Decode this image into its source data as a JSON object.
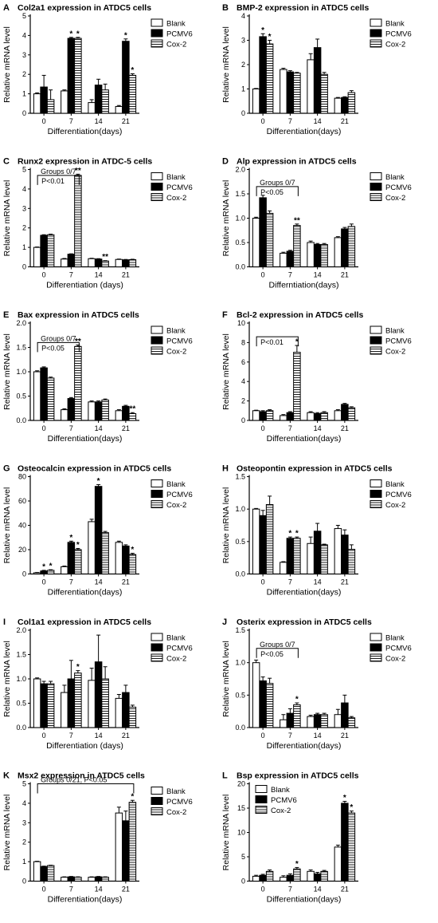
{
  "figure": {
    "legend_labels": [
      "Blank",
      "PCMV6",
      "Cox-2"
    ],
    "colors": {
      "blank": "#ffffff",
      "pcmv6": "#000000",
      "cox2": "hatch",
      "stroke": "#000000"
    }
  },
  "chart_data": [
    {
      "letter": "A",
      "type": "bar",
      "title": "Col2a1 expression in ATDC5 cells",
      "xlabel": "Differentiation(days)",
      "ylabel": "Relative mRNA level",
      "categories": [
        "0",
        "7",
        "14",
        "21"
      ],
      "ylim": [
        0,
        5
      ],
      "yticks": [
        0,
        1,
        2,
        3,
        4,
        5
      ],
      "yticklabels": [
        "0",
        "1",
        "2",
        "3",
        "4",
        "5"
      ],
      "series": [
        {
          "name": "Blank",
          "values": [
            1.0,
            1.15,
            0.55,
            0.35
          ],
          "errors": [
            0.05,
            0.05,
            0.15,
            0.05
          ]
        },
        {
          "name": "PCMV6",
          "values": [
            1.35,
            3.85,
            1.45,
            3.7
          ],
          "errors": [
            0.6,
            0.05,
            0.3,
            0.12
          ]
        },
        {
          "name": "Cox-2",
          "values": [
            0.7,
            3.85,
            1.2,
            1.95
          ],
          "errors": [
            0.5,
            0.05,
            0.3,
            0.08
          ]
        }
      ],
      "annotations": [
        {
          "text": "*",
          "cat": 1,
          "series": 1
        },
        {
          "text": "*",
          "cat": 1,
          "series": 2
        },
        {
          "text": "*",
          "cat": 3,
          "series": 1
        },
        {
          "text": "*",
          "cat": 3,
          "series": 2
        }
      ],
      "bracket": null
    },
    {
      "letter": "B",
      "type": "bar",
      "title": "BMP-2 expression in ATDC5 cells",
      "xlabel": "Differentiation(days)",
      "ylabel": "Relative mRNA level",
      "categories": [
        "0",
        "7",
        "14",
        "21"
      ],
      "ylim": [
        0,
        4
      ],
      "yticks": [
        0,
        1,
        2,
        3,
        4
      ],
      "yticklabels": [
        "0",
        "1",
        "2",
        "3",
        "4"
      ],
      "series": [
        {
          "name": "Blank",
          "values": [
            1.0,
            1.8,
            2.2,
            0.62
          ],
          "errors": [
            0.02,
            0.05,
            0.25,
            0.03
          ]
        },
        {
          "name": "PCMV6",
          "values": [
            3.15,
            1.7,
            2.7,
            0.65
          ],
          "errors": [
            0.12,
            0.05,
            0.35,
            0.03
          ]
        },
        {
          "name": "Cox-2",
          "values": [
            2.85,
            1.65,
            1.6,
            0.85
          ],
          "errors": [
            0.15,
            0.03,
            0.08,
            0.08
          ]
        }
      ],
      "annotations": [
        {
          "text": "*",
          "cat": 0,
          "series": 1
        },
        {
          "text": "*",
          "cat": 0,
          "series": 2
        }
      ],
      "bracket": null
    },
    {
      "letter": "C",
      "type": "bar",
      "title": "Runx2 expression in ATDC-5 cells",
      "xlabel": "Differentiation (days)",
      "ylabel": "Relative mRNA level",
      "categories": [
        "0",
        "7",
        "14",
        "21"
      ],
      "ylim": [
        0,
        5
      ],
      "yticks": [
        0,
        1,
        2,
        3,
        4,
        5
      ],
      "yticklabels": [
        "0",
        "1",
        "2",
        "3",
        "4",
        "5"
      ],
      "series": [
        {
          "name": "Blank",
          "values": [
            1.0,
            0.4,
            0.42,
            0.38
          ],
          "errors": [
            0.02,
            0.03,
            0.02,
            0.02
          ]
        },
        {
          "name": "PCMV6",
          "values": [
            1.62,
            0.65,
            0.4,
            0.36
          ],
          "errors": [
            0.03,
            0.02,
            0.02,
            0.02
          ]
        },
        {
          "name": "Cox-2",
          "values": [
            1.65,
            4.7,
            0.3,
            0.37
          ],
          "errors": [
            0.03,
            0.06,
            0.02,
            0.02
          ]
        }
      ],
      "annotations": [
        {
          "text": "**",
          "cat": 1,
          "series": 2
        },
        {
          "text": "**",
          "cat": 2,
          "series": 2
        }
      ],
      "bracket": {
        "top_text": "Groups 0/7",
        "p_text": "P<0.01",
        "from": 0,
        "to": 1,
        "y": 4.7
      }
    },
    {
      "letter": "D",
      "type": "bar",
      "title": "Alp expression in ATDC5 cells",
      "xlabel": "Differntiation(days)",
      "ylabel": "Relative mRNA level",
      "categories": [
        "0",
        "7",
        "14",
        "21"
      ],
      "ylim": [
        0,
        2.0
      ],
      "yticks": [
        0,
        0.5,
        1.0,
        1.5,
        2.0
      ],
      "yticklabels": [
        "0.0",
        "0.5",
        "1.0",
        "1.5",
        "2.0"
      ],
      "series": [
        {
          "name": "Blank",
          "values": [
            1.0,
            0.28,
            0.5,
            0.6
          ],
          "errors": [
            0.02,
            0.02,
            0.03,
            0.02
          ]
        },
        {
          "name": "PCMV6",
          "values": [
            1.42,
            0.32,
            0.46,
            0.78
          ],
          "errors": [
            0.05,
            0.02,
            0.02,
            0.03
          ]
        },
        {
          "name": "Cox-2",
          "values": [
            1.1,
            0.85,
            0.46,
            0.83
          ],
          "errors": [
            0.05,
            0.03,
            0.02,
            0.05
          ]
        }
      ],
      "annotations": [
        {
          "text": "**",
          "cat": 1,
          "series": 2
        }
      ],
      "bracket": {
        "top_text": "Groups 0/7",
        "p_text": "P<0.05",
        "from": 0,
        "to": 1,
        "y": 1.65
      }
    },
    {
      "letter": "E",
      "type": "bar",
      "title": "Bax expression in ATDC5 cells",
      "xlabel": "Differentiation(days)",
      "ylabel": "Relative mRNA level",
      "categories": [
        "0",
        "7",
        "14",
        "21"
      ],
      "ylim": [
        0,
        2.0
      ],
      "yticks": [
        0,
        0.5,
        1.0,
        1.5,
        2.0
      ],
      "yticklabels": [
        "0.0",
        "0.5",
        "1.0",
        "1.5",
        "2.0"
      ],
      "series": [
        {
          "name": "Blank",
          "values": [
            1.0,
            0.22,
            0.38,
            0.2
          ],
          "errors": [
            0.02,
            0.02,
            0.02,
            0.02
          ]
        },
        {
          "name": "PCMV6",
          "values": [
            1.08,
            0.45,
            0.38,
            0.29
          ],
          "errors": [
            0.02,
            0.02,
            0.02,
            0.02
          ]
        },
        {
          "name": "Cox-2",
          "values": [
            0.87,
            1.52,
            0.42,
            0.14
          ],
          "errors": [
            0.02,
            0.03,
            0.02,
            0.02
          ]
        }
      ],
      "annotations": [
        {
          "text": "**",
          "cat": 1,
          "series": 2
        },
        {
          "text": "**",
          "cat": 3,
          "series": 2
        }
      ],
      "bracket": {
        "top_text": "Groups 0/7",
        "p_text": "P<0.05",
        "from": 0,
        "to": 1,
        "y": 1.6
      }
    },
    {
      "letter": "F",
      "type": "bar",
      "title": "Bcl-2 expression in ATDC5 cells",
      "xlabel": "Differentiation(days)",
      "ylabel": "Relative mRNA level",
      "categories": [
        "0",
        "7",
        "14",
        "21"
      ],
      "ylim": [
        0,
        10
      ],
      "yticks": [
        0,
        2,
        4,
        6,
        8,
        10
      ],
      "yticklabels": [
        "0",
        "2",
        "4",
        "6",
        "8",
        "10"
      ],
      "series": [
        {
          "name": "Blank",
          "values": [
            1.0,
            0.5,
            0.8,
            1.0
          ],
          "errors": [
            0.05,
            0.1,
            0.1,
            0.1
          ]
        },
        {
          "name": "PCMV6",
          "values": [
            0.9,
            0.8,
            0.7,
            1.65
          ],
          "errors": [
            0.1,
            0.1,
            0.1,
            0.1
          ]
        },
        {
          "name": "Cox-2",
          "values": [
            1.0,
            7.0,
            0.8,
            1.3
          ],
          "errors": [
            0.1,
            0.7,
            0.1,
            0.1
          ]
        }
      ],
      "annotations": [
        {
          "text": "*",
          "cat": 1,
          "series": 2
        }
      ],
      "bracket": {
        "top_text": "",
        "p_text": "P<0.01",
        "from": 0,
        "to": 1,
        "y": 8.6
      }
    },
    {
      "letter": "G",
      "type": "bar",
      "title": "Osteocalcin expression in ATDC5 cells",
      "xlabel": "Differentiation(days)",
      "ylabel": "Relative mRNA level",
      "categories": [
        "0",
        "7",
        "14",
        "21"
      ],
      "ylim": [
        0,
        80
      ],
      "yticks": [
        0,
        20,
        40,
        60,
        80
      ],
      "yticklabels": [
        "0",
        "20",
        "40",
        "60",
        "80"
      ],
      "series": [
        {
          "name": "Blank",
          "values": [
            1,
            6,
            43,
            26
          ],
          "errors": [
            0.3,
            0.5,
            2,
            1
          ]
        },
        {
          "name": "PCMV6",
          "values": [
            2.5,
            26,
            72,
            23
          ],
          "errors": [
            0.5,
            1,
            1.5,
            1
          ]
        },
        {
          "name": "Cox-2",
          "values": [
            3,
            20,
            34,
            16
          ],
          "errors": [
            0.5,
            1,
            1,
            1
          ]
        }
      ],
      "annotations": [
        {
          "text": "*",
          "cat": 0,
          "series": 1
        },
        {
          "text": "*",
          "cat": 0,
          "series": 2
        },
        {
          "text": "*",
          "cat": 1,
          "series": 1
        },
        {
          "text": "*",
          "cat": 1,
          "series": 2
        },
        {
          "text": "*",
          "cat": 2,
          "series": 1
        },
        {
          "text": "*",
          "cat": 3,
          "series": 2
        }
      ],
      "bracket": null
    },
    {
      "letter": "H",
      "type": "bar",
      "title": "Osteopontin expression in ATDC5 cells",
      "xlabel": "Differentiation(days)",
      "ylabel": "Relative mRNA level",
      "categories": [
        "0",
        "7",
        "14",
        "21"
      ],
      "ylim": [
        0,
        1.5
      ],
      "yticks": [
        0,
        0.5,
        1.0,
        1.5
      ],
      "yticklabels": [
        "0.0",
        "0.5",
        "1.0",
        "1.5"
      ],
      "series": [
        {
          "name": "Blank",
          "values": [
            1.0,
            0.18,
            0.47,
            0.7
          ],
          "errors": [
            0.01,
            0.01,
            0.1,
            0.05
          ]
        },
        {
          "name": "PCMV6",
          "values": [
            0.9,
            0.55,
            0.66,
            0.6
          ],
          "errors": [
            0.08,
            0.02,
            0.12,
            0.08
          ]
        },
        {
          "name": "Cox-2",
          "values": [
            1.07,
            0.55,
            0.45,
            0.38
          ],
          "errors": [
            0.13,
            0.02,
            0.01,
            0.07
          ]
        }
      ],
      "annotations": [
        {
          "text": "*",
          "cat": 1,
          "series": 1
        },
        {
          "text": "*",
          "cat": 1,
          "series": 2
        }
      ],
      "bracket": null
    },
    {
      "letter": "I",
      "type": "bar",
      "title": "Col1a1 expression in ATDC5 cells",
      "xlabel": "Differentiation (days)",
      "ylabel": "Relative mRNA level",
      "categories": [
        "0",
        "7",
        "14",
        "21"
      ],
      "ylim": [
        0,
        2.0
      ],
      "yticks": [
        0,
        0.5,
        1.0,
        1.5,
        2.0
      ],
      "yticklabels": [
        "0.0",
        "0.5",
        "1.0",
        "1.5",
        "2.0"
      ],
      "series": [
        {
          "name": "Blank",
          "values": [
            1.0,
            0.72,
            0.97,
            0.6
          ],
          "errors": [
            0.02,
            0.15,
            0.25,
            0.08
          ]
        },
        {
          "name": "PCMV6",
          "values": [
            0.9,
            1.0,
            1.35,
            0.72
          ],
          "errors": [
            0.05,
            0.38,
            0.55,
            0.15
          ]
        },
        {
          "name": "Cox-2",
          "values": [
            0.9,
            1.12,
            1.0,
            0.42
          ],
          "errors": [
            0.05,
            0.05,
            0.25,
            0.04
          ]
        }
      ],
      "annotations": [
        {
          "text": "*",
          "cat": 1,
          "series": 2
        }
      ],
      "bracket": null
    },
    {
      "letter": "J",
      "type": "bar",
      "title": "Osterix expression in ATDC5 cells",
      "xlabel": "Differentiation(days)",
      "ylabel": "Relative mRNA level",
      "categories": [
        "0",
        "7",
        "14",
        "21"
      ],
      "ylim": [
        0,
        1.5
      ],
      "yticks": [
        0,
        0.5,
        1.0,
        1.5
      ],
      "yticklabels": [
        "0.0",
        "0.5",
        "1.0",
        "1.5"
      ],
      "series": [
        {
          "name": "Blank",
          "values": [
            1.0,
            0.12,
            0.17,
            0.2
          ],
          "errors": [
            0.04,
            0.08,
            0.02,
            0.08
          ]
        },
        {
          "name": "PCMV6",
          "values": [
            0.72,
            0.22,
            0.2,
            0.38
          ],
          "errors": [
            0.06,
            0.07,
            0.02,
            0.12
          ]
        },
        {
          "name": "Cox-2",
          "values": [
            0.68,
            0.35,
            0.2,
            0.15
          ],
          "errors": [
            0.08,
            0.03,
            0.02,
            0.02
          ]
        }
      ],
      "annotations": [
        {
          "text": "*",
          "cat": 1,
          "series": 2
        }
      ],
      "bracket": {
        "top_text": "Groups 0/7",
        "p_text": "P<0.05",
        "from": 0,
        "to": 1,
        "y": 1.22
      }
    },
    {
      "letter": "K",
      "type": "bar",
      "title": "Msx2 expression in ATDC5 cells",
      "xlabel": "Differentiation(days)",
      "ylabel": "Relative mRNA level",
      "categories": [
        "0",
        "7",
        "14",
        "21"
      ],
      "ylim": [
        0,
        5
      ],
      "yticks": [
        0,
        1,
        2,
        3,
        4,
        5
      ],
      "yticklabels": [
        "0",
        "1",
        "2",
        "3",
        "4",
        "5"
      ],
      "series": [
        {
          "name": "Blank",
          "values": [
            1.0,
            0.2,
            0.2,
            3.5
          ],
          "errors": [
            0.02,
            0.02,
            0.02,
            0.3
          ]
        },
        {
          "name": "PCMV6",
          "values": [
            0.75,
            0.22,
            0.22,
            3.1
          ],
          "errors": [
            0.02,
            0.02,
            0.02,
            0.5
          ]
        },
        {
          "name": "Cox-2",
          "values": [
            0.8,
            0.2,
            0.2,
            4.05
          ],
          "errors": [
            0.02,
            0.02,
            0.02,
            0.1
          ]
        }
      ],
      "annotations": [
        {
          "text": "*",
          "cat": 3,
          "series": 2
        }
      ],
      "bracket": {
        "top_text": "Groups 0/21, P<0.05",
        "p_text": "",
        "from": 0,
        "to": 3,
        "y": 5.0
      }
    },
    {
      "letter": "L",
      "type": "bar",
      "title": "Bsp expression in ATDC5 cells",
      "xlabel": "Differentiation(days)",
      "ylabel": "Relative mRNA level",
      "categories": [
        "0",
        "7",
        "14",
        "21"
      ],
      "ylim": [
        0,
        20
      ],
      "yticks": [
        0,
        5,
        10,
        15,
        20
      ],
      "yticklabels": [
        "0",
        "5",
        "10",
        "15",
        "20"
      ],
      "series": [
        {
          "name": "Blank",
          "values": [
            1,
            0.8,
            2,
            7
          ],
          "errors": [
            0.2,
            0.3,
            0.3,
            0.4
          ]
        },
        {
          "name": "PCMV6",
          "values": [
            1.2,
            1.2,
            1.5,
            16
          ],
          "errors": [
            0.2,
            0.3,
            0.3,
            0.4
          ]
        },
        {
          "name": "Cox-2",
          "values": [
            2,
            2.5,
            2,
            14
          ],
          "errors": [
            0.3,
            0.3,
            0.2,
            0.4
          ]
        }
      ],
      "annotations": [
        {
          "text": "*",
          "cat": 1,
          "series": 2
        },
        {
          "text": "*",
          "cat": 3,
          "series": 1
        },
        {
          "text": "*",
          "cat": 3,
          "series": 2
        }
      ],
      "bracket": null,
      "legend_left": true
    }
  ]
}
